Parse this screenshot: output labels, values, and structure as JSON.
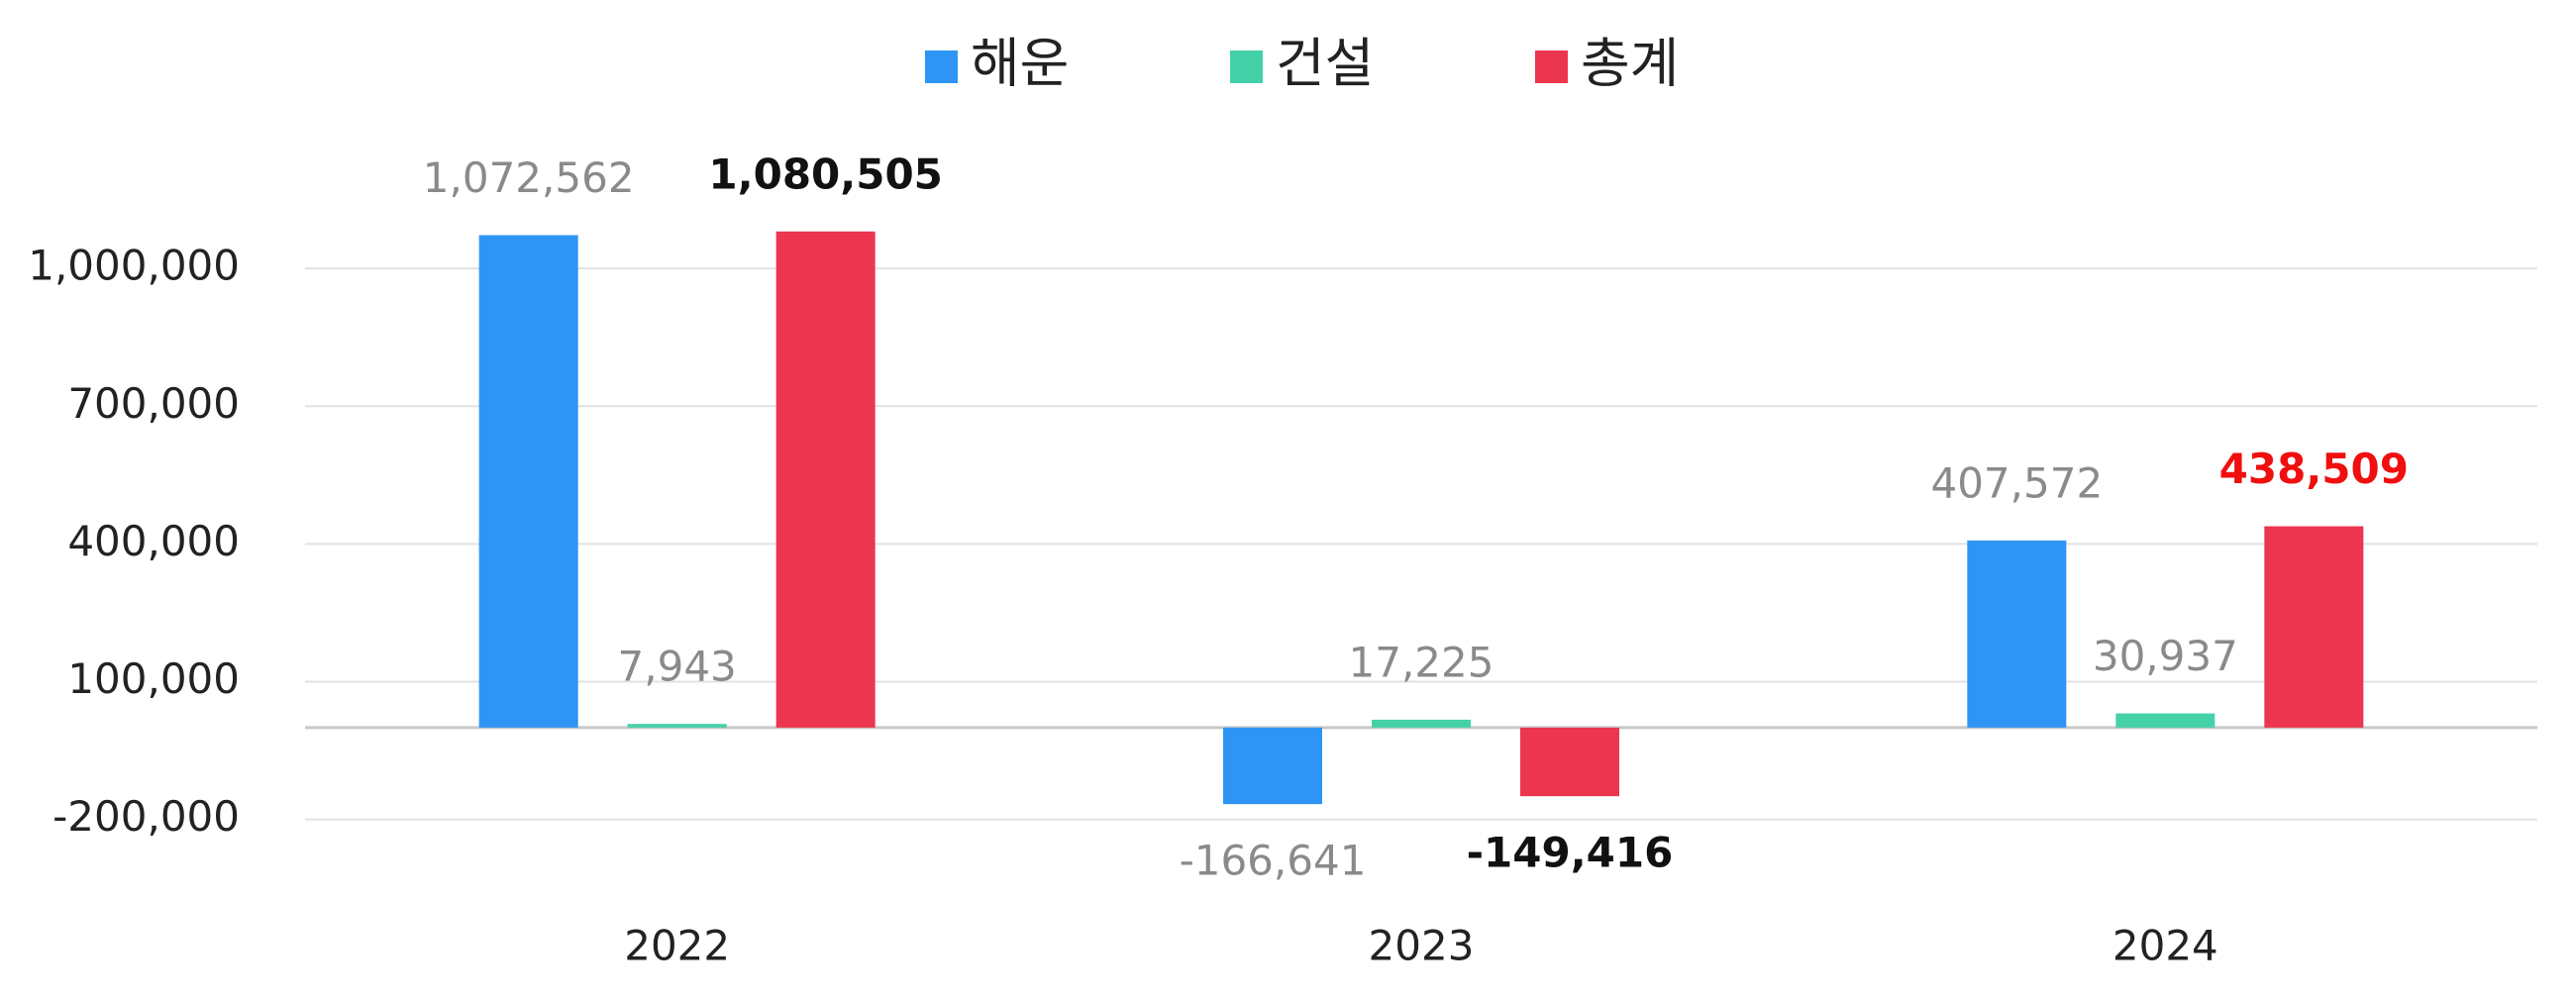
{
  "chart_data": {
    "type": "bar",
    "categories": [
      "2022",
      "2023",
      "2024"
    ],
    "series": [
      {
        "name": "해운",
        "color": "#2e95f5",
        "values": [
          1072562,
          -166641,
          407572
        ],
        "value_labels": [
          "1,072,562",
          "-166,641",
          "407,572"
        ]
      },
      {
        "name": "건설",
        "color": "#45d1a8",
        "values": [
          7943,
          17225,
          30937
        ],
        "value_labels": [
          "7,943",
          "17,225",
          "30,937"
        ]
      },
      {
        "name": "총계",
        "color": "#ec354f",
        "values": [
          1080505,
          -149416,
          438509
        ],
        "value_labels": [
          "1,080,505",
          "-149,416",
          "438,509"
        ]
      }
    ],
    "ylim": [
      -300000,
      1300000
    ],
    "yticks": [
      {
        "value": -200000,
        "label": "-200,000"
      },
      {
        "value": 100000,
        "label": "100,000"
      },
      {
        "value": 400000,
        "label": "400,000"
      },
      {
        "value": 700000,
        "label": "700,000"
      },
      {
        "value": 1000000,
        "label": "1,000,000"
      }
    ],
    "grid": true,
    "legend": "top"
  }
}
